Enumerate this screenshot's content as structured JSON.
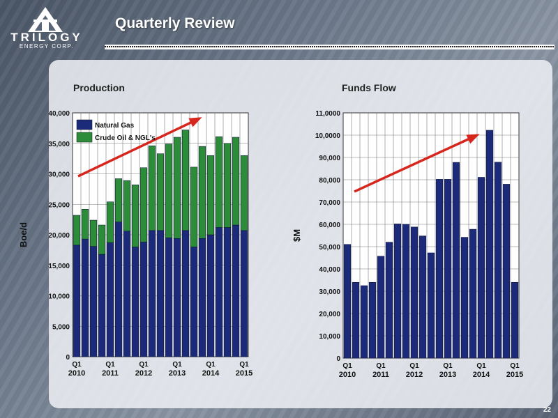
{
  "header": {
    "title": "Quarterly Review",
    "logo_name": "TRILOGY",
    "logo_sub": "ENERGY CORP."
  },
  "page_number": "22",
  "colors": {
    "gas": "#1c2a7a",
    "oil": "#2c8c3a",
    "arrow": "#d7261e",
    "bar": "#1c2a7a"
  },
  "chart_data": [
    {
      "type": "bar",
      "stacked": true,
      "title": "Production",
      "ylabel": "Boe/d",
      "ylim": [
        0,
        40000
      ],
      "yticks": [
        "0",
        "5,000",
        "10,000",
        "15,000",
        "20,000",
        "25,000",
        "30,000",
        "35,000",
        "40,000"
      ],
      "x_tick_labels": [
        {
          "q": "Q1",
          "y": "2010"
        },
        {
          "q": "Q1",
          "y": "2011"
        },
        {
          "q": "Q1",
          "y": "2012"
        },
        {
          "q": "Q1",
          "y": "2013"
        },
        {
          "q": "Q1",
          "y": "2014"
        },
        {
          "q": "Q1",
          "y": "2015"
        }
      ],
      "legend": [
        "Natural Gas",
        "Crude Oil & NGL's"
      ],
      "legend_position": "top-left",
      "grid": true,
      "series": [
        {
          "name": "Natural Gas",
          "values": [
            18300,
            19300,
            18100,
            16800,
            18700,
            22100,
            20600,
            18000,
            18800,
            20700,
            20700,
            19500,
            19400,
            20700,
            18000,
            19400,
            20000,
            21200,
            21200,
            21600,
            20700
          ]
        },
        {
          "name": "Crude Oil & NGL's",
          "values": [
            4900,
            4900,
            4300,
            4800,
            6700,
            7100,
            8300,
            10200,
            12200,
            13900,
            12600,
            15400,
            16600,
            16500,
            13100,
            15100,
            13000,
            14900,
            13800,
            14400,
            12300
          ]
        }
      ],
      "trend": "up"
    },
    {
      "type": "bar",
      "title": "Funds Flow",
      "ylabel": "$M",
      "ylim": [
        0,
        110000
      ],
      "yticks": [
        "0",
        "10,000",
        "20,000",
        "30,000",
        "40,000",
        "50,000",
        "60,000",
        "70,000",
        "80,000",
        "90,000",
        "10,0000",
        "11,0000"
      ],
      "x_tick_labels": [
        {
          "q": "Q1",
          "y": "2010"
        },
        {
          "q": "Q1",
          "y": "2011"
        },
        {
          "q": "Q1",
          "y": "2012"
        },
        {
          "q": "Q1",
          "y": "2013"
        },
        {
          "q": "Q1",
          "y": "2014"
        },
        {
          "q": "Q1",
          "y": "2015"
        }
      ],
      "grid": true,
      "values": [
        51000,
        34000,
        32500,
        34000,
        45700,
        52000,
        60200,
        60000,
        58800,
        54800,
        47200,
        80200,
        80200,
        87800,
        54200,
        57800,
        81100,
        102200,
        87900,
        78000,
        34000
      ],
      "trend": "up"
    }
  ]
}
